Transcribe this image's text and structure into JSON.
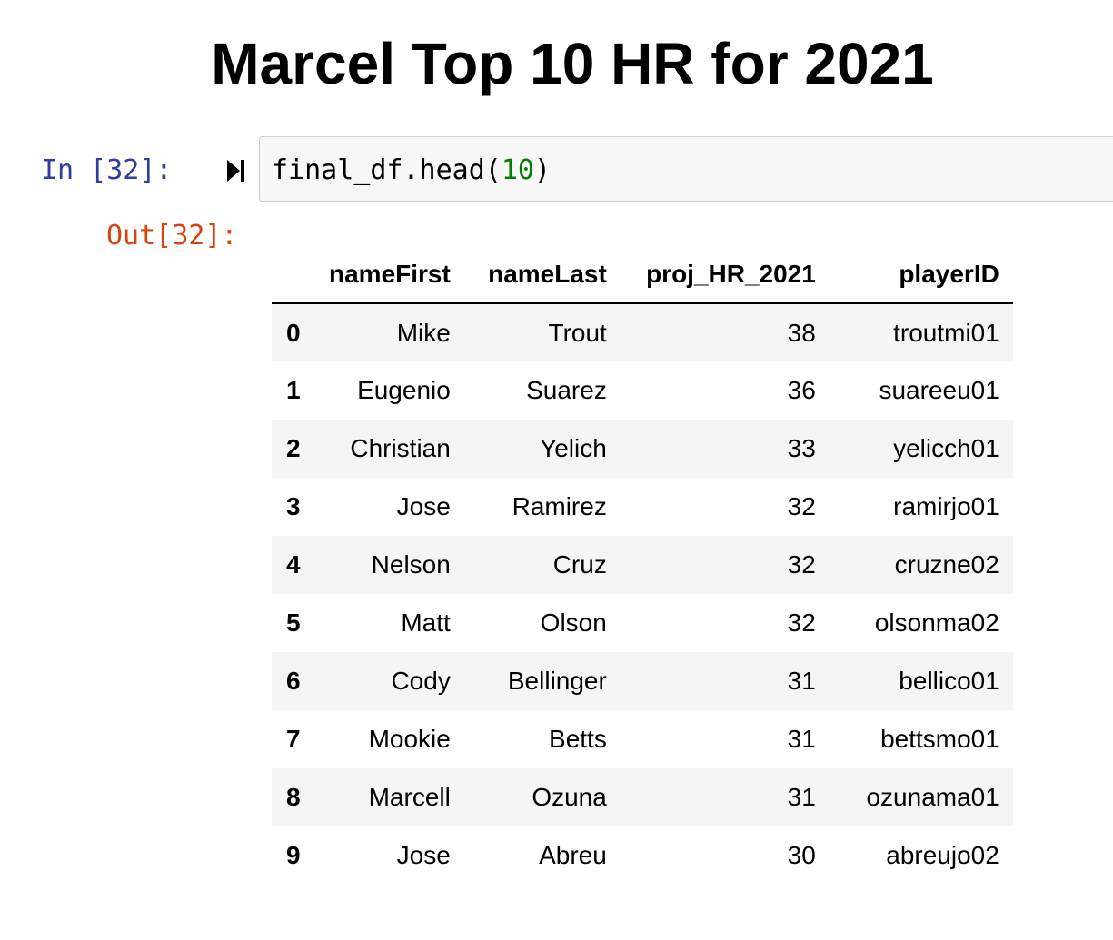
{
  "title": "Marcel Top 10 HR for 2021",
  "input_cell": {
    "prompt": "In [32]:",
    "code_prefix": "final_df.head(",
    "code_arg": "10",
    "code_suffix": ")",
    "run_icon": "run-cell-icon"
  },
  "output_cell": {
    "prompt": "Out[32]:"
  },
  "table": {
    "columns": [
      "",
      "nameFirst",
      "nameLast",
      "proj_HR_2021",
      "playerID"
    ],
    "rows": [
      {
        "index": "0",
        "nameFirst": "Mike",
        "nameLast": "Trout",
        "proj_HR_2021": "38",
        "playerID": "troutmi01"
      },
      {
        "index": "1",
        "nameFirst": "Eugenio",
        "nameLast": "Suarez",
        "proj_HR_2021": "36",
        "playerID": "suareeu01"
      },
      {
        "index": "2",
        "nameFirst": "Christian",
        "nameLast": "Yelich",
        "proj_HR_2021": "33",
        "playerID": "yelicch01"
      },
      {
        "index": "3",
        "nameFirst": "Jose",
        "nameLast": "Ramirez",
        "proj_HR_2021": "32",
        "playerID": "ramirjo01"
      },
      {
        "index": "4",
        "nameFirst": "Nelson",
        "nameLast": "Cruz",
        "proj_HR_2021": "32",
        "playerID": "cruzne02"
      },
      {
        "index": "5",
        "nameFirst": "Matt",
        "nameLast": "Olson",
        "proj_HR_2021": "32",
        "playerID": "olsonma02"
      },
      {
        "index": "6",
        "nameFirst": "Cody",
        "nameLast": "Bellinger",
        "proj_HR_2021": "31",
        "playerID": "bellico01"
      },
      {
        "index": "7",
        "nameFirst": "Mookie",
        "nameLast": "Betts",
        "proj_HR_2021": "31",
        "playerID": "bettsmo01"
      },
      {
        "index": "8",
        "nameFirst": "Marcell",
        "nameLast": "Ozuna",
        "proj_HR_2021": "31",
        "playerID": "ozunama01"
      },
      {
        "index": "9",
        "nameFirst": "Jose",
        "nameLast": "Abreu",
        "proj_HR_2021": "30",
        "playerID": "abreujo02"
      }
    ]
  }
}
